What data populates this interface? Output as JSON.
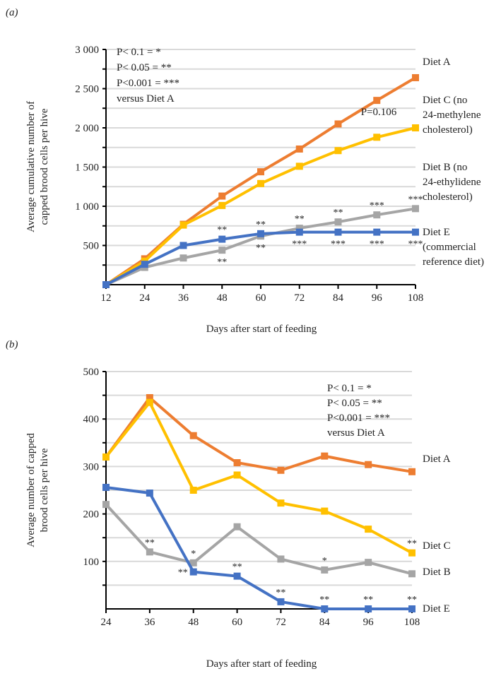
{
  "chart_data": [
    {
      "panel_label": "(a)",
      "type": "line",
      "xlabel": "Days after start of feeding",
      "ylabel_lines": [
        "Average cumulative number of",
        "capped brood cells per  hive"
      ],
      "x": [
        12,
        24,
        36,
        48,
        60,
        72,
        84,
        96,
        108
      ],
      "xticks": [
        "12",
        "24",
        "36",
        "48",
        "60",
        "72",
        "84",
        "96",
        "108"
      ],
      "yticks": [
        {
          "v": 500,
          "label": "500"
        },
        {
          "v": 1000,
          "label": "1 000"
        },
        {
          "v": 1500,
          "label": "1 500"
        },
        {
          "v": 2000,
          "label": "2 000"
        },
        {
          "v": 2500,
          "label": "2 500"
        },
        {
          "v": 3000,
          "label": "3 000"
        }
      ],
      "ylim": [
        0,
        3000
      ],
      "grid_step": 250,
      "legend_note": [
        "P< 0.1 = *",
        "P< 0.05 = **",
        "P<0.001 = ***",
        "versus Diet A"
      ],
      "series": [
        {
          "name": "Diet A",
          "color": "#ED7D31",
          "values": [
            0,
            330,
            770,
            1130,
            1440,
            1730,
            2050,
            2350,
            2640
          ],
          "label_lines": [
            "Diet A"
          ]
        },
        {
          "name": "Diet C",
          "color": "#FFC000",
          "values": [
            0,
            300,
            760,
            1010,
            1290,
            1510,
            1710,
            1880,
            2000
          ],
          "label_lines": [
            "Diet C (no",
            "24-methylene",
            "cholesterol)"
          ]
        },
        {
          "name": "Diet B",
          "color": "#A5A5A5",
          "values": [
            0,
            220,
            340,
            440,
            620,
            720,
            800,
            890,
            970
          ],
          "label_lines": [
            "Diet B (no",
            "24-ethylidene",
            "cholesterol)"
          ]
        },
        {
          "name": "Diet E",
          "color": "#4472C4",
          "values": [
            0,
            260,
            500,
            580,
            650,
            670,
            670,
            670,
            670
          ],
          "label_lines": [
            "Diet E",
            "(commercial",
            "reference diet)"
          ]
        }
      ],
      "extra_text": [
        {
          "series": "Diet C",
          "x": 108,
          "text": "P=0.106"
        }
      ],
      "annotations": [
        {
          "series": "Diet E",
          "x": 48,
          "text": "**",
          "pos": "above"
        },
        {
          "series": "Diet B",
          "x": 48,
          "text": "**",
          "pos": "below"
        },
        {
          "series": "Diet E",
          "x": 60,
          "text": "**",
          "pos": "above"
        },
        {
          "series": "Diet B",
          "x": 60,
          "text": "**",
          "pos": "below"
        },
        {
          "series": "Diet B",
          "x": 72,
          "text": "**",
          "pos": "above"
        },
        {
          "series": "Diet E",
          "x": 72,
          "text": "***",
          "pos": "below"
        },
        {
          "series": "Diet B",
          "x": 84,
          "text": "**",
          "pos": "above"
        },
        {
          "series": "Diet E",
          "x": 84,
          "text": "***",
          "pos": "below"
        },
        {
          "series": "Diet B",
          "x": 96,
          "text": "***",
          "pos": "above"
        },
        {
          "series": "Diet E",
          "x": 96,
          "text": "***",
          "pos": "below"
        },
        {
          "series": "Diet B",
          "x": 108,
          "text": "***",
          "pos": "above"
        },
        {
          "series": "Diet E",
          "x": 108,
          "text": "***",
          "pos": "below"
        }
      ]
    },
    {
      "panel_label": "(b)",
      "type": "line",
      "xlabel": "Days after start of feeding",
      "ylabel_lines": [
        "Average number of capped",
        "brood cells per  hive"
      ],
      "x": [
        24,
        36,
        48,
        60,
        72,
        84,
        96,
        108
      ],
      "xticks": [
        "24",
        "36",
        "48",
        "60",
        "72",
        "84",
        "96",
        "108"
      ],
      "yticks": [
        {
          "v": 100,
          "label": "100"
        },
        {
          "v": 200,
          "label": "200"
        },
        {
          "v": 300,
          "label": "300"
        },
        {
          "v": 400,
          "label": "400"
        },
        {
          "v": 500,
          "label": "500"
        }
      ],
      "ylim": [
        0,
        500
      ],
      "grid_step": 50,
      "legend_note": [
        "P< 0.1 = *",
        "P< 0.05 = **",
        "P<0.001 = ***",
        "versus Diet A"
      ],
      "series": [
        {
          "name": "Diet A",
          "color": "#ED7D31",
          "values": [
            320,
            445,
            365,
            308,
            292,
            322,
            304,
            289
          ],
          "label_lines": [
            "Diet A"
          ]
        },
        {
          "name": "Diet C",
          "color": "#FFC000",
          "values": [
            320,
            435,
            250,
            282,
            223,
            206,
            168,
            118
          ],
          "label_lines": [
            "Diet C"
          ]
        },
        {
          "name": "Diet B",
          "color": "#A5A5A5",
          "values": [
            220,
            120,
            97,
            173,
            105,
            82,
            98,
            74
          ],
          "label_lines": [
            "Diet B"
          ]
        },
        {
          "name": "Diet E",
          "color": "#4472C4",
          "values": [
            256,
            244,
            78,
            69,
            15,
            0,
            0,
            0
          ],
          "label_lines": [
            "Diet E"
          ]
        }
      ],
      "extra_text": [],
      "annotations": [
        {
          "series": "Diet B",
          "x": 36,
          "text": "**",
          "pos": "above"
        },
        {
          "series": "Diet B",
          "x": 48,
          "text": "*",
          "pos": "above"
        },
        {
          "series": "Diet E",
          "x": 48,
          "text": "**",
          "pos": "left"
        },
        {
          "series": "Diet E",
          "x": 60,
          "text": "**",
          "pos": "above"
        },
        {
          "series": "Diet E",
          "x": 72,
          "text": "**",
          "pos": "above"
        },
        {
          "series": "Diet B",
          "x": 84,
          "text": "*",
          "pos": "above"
        },
        {
          "series": "Diet E",
          "x": 84,
          "text": "**",
          "pos": "above"
        },
        {
          "series": "Diet E",
          "x": 96,
          "text": "**",
          "pos": "above"
        },
        {
          "series": "Diet E",
          "x": 108,
          "text": "**",
          "pos": "above"
        },
        {
          "series": "Diet C",
          "x": 108,
          "text": "**",
          "pos": "above"
        }
      ]
    }
  ]
}
